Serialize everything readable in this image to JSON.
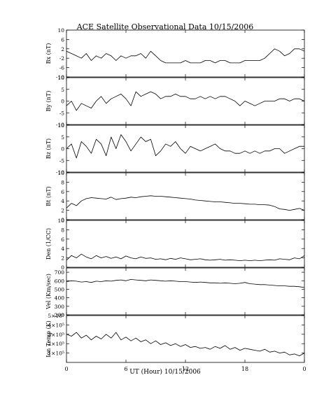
{
  "chart_data": {
    "type": "line",
    "title": "ACE Satellite Observational Data   10/15/2006",
    "xlabel": "UT (Hour)   10/15/2006",
    "x_ticks": [
      "0",
      "6",
      "12",
      "18",
      "0"
    ],
    "xlim": [
      0,
      24
    ],
    "panels": [
      {
        "ylabel": "Bx (nT)",
        "ylim": [
          -10,
          10
        ],
        "yticks": [
          -10,
          -6,
          -2,
          2,
          6,
          10
        ],
        "ytick_labels": [
          "-10",
          "-6",
          "-2",
          "2",
          "6",
          "10"
        ],
        "series": [
          {
            "x": [
              0,
              0.5,
              1,
              1.5,
              2,
              2.5,
              3,
              3.5,
              4,
              4.5,
              5,
              5.5,
              6,
              6.5,
              7,
              7.5,
              8,
              8.5,
              9,
              9.5,
              10,
              10.5,
              11,
              11.5,
              12,
              12.5,
              13,
              13.5,
              14,
              14.5,
              15,
              15.5,
              16,
              16.5,
              17,
              17.5,
              18,
              18.5,
              19,
              19.5,
              20,
              20.5,
              21,
              21.5,
              22,
              22.5,
              23,
              23.5,
              24
            ],
            "values": [
              1,
              0,
              -1,
              -2,
              0,
              -3,
              -1,
              -2,
              0,
              -1,
              -3,
              -1,
              -2,
              -1,
              -1,
              0,
              -2,
              1,
              -1,
              -3,
              -4,
              -4,
              -4,
              -4,
              -3,
              -4,
              -4,
              -4,
              -3,
              -3,
              -4,
              -3,
              -3,
              -4,
              -4,
              -4,
              -3,
              -3,
              -3,
              -3,
              -2,
              0,
              2,
              1,
              -1,
              0,
              2,
              2,
              1
            ]
          }
        ]
      },
      {
        "ylabel": "By (nT)",
        "ylim": [
          -10,
          10
        ],
        "yticks": [
          -10,
          -5,
          0,
          5,
          10
        ],
        "ytick_labels": [
          "-10",
          "-5",
          "0",
          "5",
          "10"
        ],
        "series": [
          {
            "x": [
              0,
              0.5,
              1,
              1.5,
              2,
              2.5,
              3,
              3.5,
              4,
              4.5,
              5,
              5.5,
              6,
              6.5,
              7,
              7.5,
              8,
              8.5,
              9,
              9.5,
              10,
              10.5,
              11,
              11.5,
              12,
              12.5,
              13,
              13.5,
              14,
              14.5,
              15,
              15.5,
              16,
              16.5,
              17,
              17.5,
              18,
              18.5,
              19,
              19.5,
              20,
              20.5,
              21,
              21.5,
              22,
              22.5,
              23,
              23.5,
              24
            ],
            "values": [
              -2,
              0,
              -4,
              -1,
              -2,
              -3,
              0,
              2,
              -1,
              1,
              2,
              3,
              1,
              -2,
              4,
              2,
              3,
              4,
              3,
              1,
              2,
              2,
              3,
              2,
              2,
              1,
              1,
              2,
              1,
              2,
              1,
              2,
              2,
              1,
              0,
              -2,
              0,
              -1,
              -2,
              -1,
              0,
              0,
              0,
              1,
              1,
              0,
              1,
              1,
              0
            ]
          }
        ]
      },
      {
        "ylabel": "Bz (nT)",
        "ylim": [
          -10,
          10
        ],
        "yticks": [
          -10,
          -5,
          0,
          5,
          10
        ],
        "ytick_labels": [
          "-10",
          "-5",
          "0",
          "5",
          "10"
        ],
        "series": [
          {
            "x": [
              0,
              0.5,
              1,
              1.5,
              2,
              2.5,
              3,
              3.5,
              4,
              4.5,
              5,
              5.5,
              6,
              6.5,
              7,
              7.5,
              8,
              8.5,
              9,
              9.5,
              10,
              10.5,
              11,
              11.5,
              12,
              12.5,
              13,
              13.5,
              14,
              14.5,
              15,
              15.5,
              16,
              16.5,
              17,
              17.5,
              18,
              18.5,
              19,
              19.5,
              20,
              20.5,
              21,
              21.5,
              22,
              22.5,
              23,
              23.5,
              24
            ],
            "values": [
              0,
              2,
              -4,
              3,
              1,
              -2,
              4,
              2,
              -3,
              5,
              0,
              6,
              3,
              -1,
              2,
              5,
              3,
              4,
              -3,
              -1,
              2,
              1,
              3,
              0,
              -2,
              1,
              0,
              -1,
              0,
              1,
              2,
              0,
              -1,
              -1,
              -2,
              -2,
              -1,
              -2,
              -1,
              -2,
              -1,
              -1,
              0,
              0,
              -2,
              -1,
              0,
              1,
              1
            ]
          }
        ]
      },
      {
        "ylabel": "Bt (nT)",
        "ylim": [
          0,
          10
        ],
        "yticks": [
          0,
          2,
          4,
          6,
          8,
          10
        ],
        "ytick_labels": [
          "0",
          "2",
          "4",
          "6",
          "8",
          "10"
        ],
        "series": [
          {
            "x": [
              0,
              0.5,
              1,
              1.5,
              2,
              2.5,
              3,
              3.5,
              4,
              4.5,
              5,
              5.5,
              6,
              6.5,
              7,
              7.5,
              8,
              8.5,
              9,
              9.5,
              10,
              10.5,
              11,
              11.5,
              12,
              12.5,
              13,
              13.5,
              14,
              14.5,
              15,
              15.5,
              16,
              16.5,
              17,
              17.5,
              18,
              18.5,
              19,
              19.5,
              20,
              20.5,
              21,
              21.5,
              22,
              22.5,
              23,
              23.5,
              24
            ],
            "values": [
              2.5,
              3.5,
              3,
              4,
              4.5,
              4.7,
              4.6,
              4.5,
              4.4,
              4.8,
              4.3,
              4.5,
              4.6,
              4.8,
              4.7,
              4.9,
              5,
              5.1,
              5,
              5,
              4.9,
              4.8,
              4.7,
              4.6,
              4.5,
              4.4,
              4.2,
              4.1,
              4,
              3.9,
              3.8,
              3.8,
              3.7,
              3.6,
              3.5,
              3.5,
              3.4,
              3.3,
              3.3,
              3.2,
              3.2,
              3.1,
              2.8,
              2.3,
              2.2,
              2.0,
              2.2,
              2.4,
              2.0
            ]
          }
        ]
      },
      {
        "ylabel": "Den (1/CC)",
        "ylim": [
          0,
          10
        ],
        "yticks": [
          0,
          2,
          4,
          6,
          8,
          10
        ],
        "ytick_labels": [
          "0",
          "2",
          "4",
          "6",
          "8",
          "10"
        ],
        "series": [
          {
            "x": [
              0,
              0.5,
              1,
              1.5,
              2,
              2.5,
              3,
              3.5,
              4,
              4.5,
              5,
              5.5,
              6,
              6.5,
              7,
              7.5,
              8,
              8.5,
              9,
              9.5,
              10,
              10.5,
              11,
              11.5,
              12,
              12.5,
              13,
              13.5,
              14,
              14.5,
              15,
              15.5,
              16,
              16.5,
              17,
              17.5,
              18,
              18.5,
              19,
              19.5,
              20,
              20.5,
              21,
              21.5,
              22,
              22.5,
              23,
              23.5,
              24
            ],
            "values": [
              1.5,
              2.5,
              2,
              2.8,
              2.2,
              1.8,
              2.5,
              2,
              2.3,
              1.9,
              2.2,
              1.8,
              2.4,
              2,
              1.8,
              2.2,
              1.9,
              2,
              1.7,
              1.8,
              1.6,
              1.9,
              1.7,
              2,
              1.8,
              1.6,
              1.7,
              1.8,
              1.6,
              1.5,
              1.6,
              1.7,
              1.5,
              1.6,
              1.5,
              1.4,
              1.5,
              1.4,
              1.5,
              1.4,
              1.5,
              1.6,
              1.5,
              1.8,
              1.7,
              1.6,
              2,
              1.8,
              2.5
            ]
          }
        ]
      },
      {
        "ylabel": "Vel (Km/sec)",
        "ylim": [
          200,
          750
        ],
        "yticks": [
          200,
          300,
          400,
          500,
          600,
          700
        ],
        "ytick_labels": [
          "200",
          "300",
          "400",
          "500",
          "600",
          "700"
        ],
        "series": [
          {
            "x": [
              0,
              0.5,
              1,
              1.5,
              2,
              2.5,
              3,
              3.5,
              4,
              4.5,
              5,
              5.5,
              6,
              6.5,
              7,
              7.5,
              8,
              8.5,
              9,
              9.5,
              10,
              10.5,
              11,
              11.5,
              12,
              12.5,
              13,
              13.5,
              14,
              14.5,
              15,
              15.5,
              16,
              16.5,
              17,
              17.5,
              18,
              18.5,
              19,
              19.5,
              20,
              20.5,
              21,
              21.5,
              22,
              22.5,
              23,
              23.5,
              24
            ],
            "values": [
              590,
              600,
              595,
              585,
              590,
              580,
              595,
              590,
              600,
              595,
              605,
              610,
              600,
              615,
              610,
              605,
              600,
              610,
              605,
              600,
              595,
              600,
              595,
              590,
              590,
              585,
              580,
              585,
              580,
              575,
              575,
              570,
              575,
              570,
              565,
              570,
              580,
              565,
              560,
              555,
              555,
              550,
              545,
              540,
              540,
              535,
              535,
              530,
              520
            ]
          }
        ]
      },
      {
        "ylabel": "Ion Temp (K)",
        "ylim": [
          0,
          500000
        ],
        "yticks": [
          100000,
          200000,
          300000,
          400000,
          500000
        ],
        "ytick_labels": [
          "1×10⁵",
          "2×10⁵",
          "3×10⁵",
          "4×10⁵",
          "5×10⁵"
        ],
        "series": [
          {
            "x": [
              0,
              0.5,
              1,
              1.5,
              2,
              2.5,
              3,
              3.5,
              4,
              4.5,
              5,
              5.5,
              6,
              6.5,
              7,
              7.5,
              8,
              8.5,
              9,
              9.5,
              10,
              10.5,
              11,
              11.5,
              12,
              12.5,
              13,
              13.5,
              14,
              14.5,
              15,
              15.5,
              16,
              16.5,
              17,
              17.5,
              18,
              18.5,
              19,
              19.5,
              20,
              20.5,
              21,
              21.5,
              22,
              22.5,
              23,
              23.5,
              24
            ],
            "values": [
              300000,
              280000,
              320000,
              260000,
              290000,
              240000,
              280000,
              250000,
              300000,
              260000,
              320000,
              240000,
              270000,
              230000,
              260000,
              220000,
              240000,
              200000,
              230000,
              190000,
              210000,
              180000,
              200000,
              170000,
              190000,
              160000,
              170000,
              150000,
              160000,
              140000,
              170000,
              150000,
              180000,
              140000,
              160000,
              130000,
              150000,
              140000,
              130000,
              120000,
              140000,
              110000,
              120000,
              100000,
              110000,
              80000,
              90000,
              70000,
              100000
            ]
          }
        ]
      }
    ]
  }
}
